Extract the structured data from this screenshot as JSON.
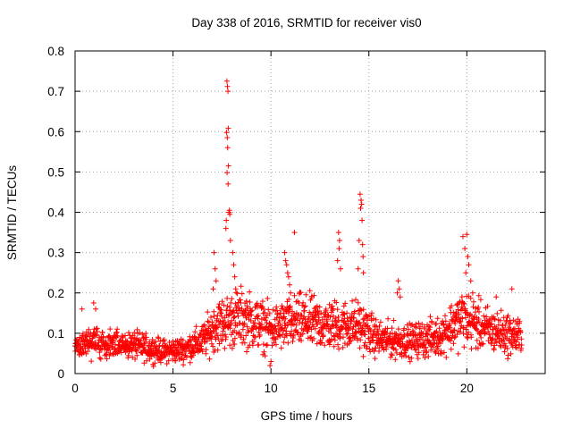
{
  "chart_data": {
    "type": "scatter",
    "title": "Day 338 of 2016, SRMTID for receiver vis0",
    "xlabel": "GPS time / hours",
    "ylabel": "SRMTID / TECUs",
    "xlim": [
      0,
      24
    ],
    "ylim": [
      0,
      0.8
    ],
    "x_ticks": [
      "0",
      "5",
      "10",
      "15",
      "20"
    ],
    "y_ticks": [
      "0",
      "0.1",
      "0.2",
      "0.3",
      "0.4",
      "0.5",
      "0.6",
      "0.7",
      "0.8"
    ],
    "grid": true,
    "marker": "+",
    "marker_color": "#ff0000",
    "baseline_segments": [
      {
        "t": 0.0,
        "v": 0.07
      },
      {
        "t": 0.8,
        "v": 0.08
      },
      {
        "t": 1.5,
        "v": 0.07
      },
      {
        "t": 3.0,
        "v": 0.07
      },
      {
        "t": 4.5,
        "v": 0.055
      },
      {
        "t": 5.5,
        "v": 0.06
      },
      {
        "t": 6.5,
        "v": 0.08
      },
      {
        "t": 7.2,
        "v": 0.12
      },
      {
        "t": 8.5,
        "v": 0.14
      },
      {
        "t": 10.0,
        "v": 0.11
      },
      {
        "t": 11.5,
        "v": 0.13
      },
      {
        "t": 13.0,
        "v": 0.12
      },
      {
        "t": 14.5,
        "v": 0.12
      },
      {
        "t": 15.5,
        "v": 0.085
      },
      {
        "t": 17.0,
        "v": 0.08
      },
      {
        "t": 18.5,
        "v": 0.09
      },
      {
        "t": 19.8,
        "v": 0.14
      },
      {
        "t": 21.0,
        "v": 0.11
      },
      {
        "t": 22.8,
        "v": 0.09
      }
    ],
    "series": [
      {
        "name": "vis0",
        "x": [
          7.75,
          7.78,
          7.8,
          7.82,
          7.74,
          7.77,
          7.79,
          7.83,
          7.76,
          7.81,
          7.85,
          7.72,
          7.88,
          7.9,
          7.7,
          7.93,
          8.05,
          8.1,
          8.15,
          8.2,
          7.1,
          7.15,
          7.2,
          7.05,
          14.55,
          14.6,
          14.63,
          14.58,
          14.65,
          14.5,
          14.68,
          14.7,
          14.45,
          14.72,
          13.45,
          13.5,
          13.48,
          13.55,
          13.4,
          10.7,
          10.75,
          10.8,
          10.85,
          10.9,
          10.95,
          11.0,
          11.2,
          19.8,
          19.9,
          20.0,
          20.05,
          20.1,
          20.2,
          19.95,
          20.3,
          16.5,
          16.55,
          16.6,
          16.45,
          0.95,
          1.05,
          0.35,
          9.95,
          10.0,
          22.3,
          21.5
        ],
        "y": [
          0.725,
          0.712,
          0.7,
          0.608,
          0.598,
          0.585,
          0.56,
          0.515,
          0.498,
          0.47,
          0.4,
          0.38,
          0.405,
          0.395,
          0.36,
          0.33,
          0.3,
          0.27,
          0.24,
          0.21,
          0.3,
          0.26,
          0.23,
          0.21,
          0.445,
          0.43,
          0.42,
          0.41,
          0.38,
          0.33,
          0.32,
          0.29,
          0.26,
          0.25,
          0.35,
          0.33,
          0.31,
          0.26,
          0.28,
          0.3,
          0.28,
          0.27,
          0.25,
          0.24,
          0.22,
          0.2,
          0.35,
          0.34,
          0.31,
          0.345,
          0.29,
          0.27,
          0.23,
          0.25,
          0.2,
          0.23,
          0.21,
          0.19,
          0.2,
          0.175,
          0.16,
          0.16,
          0.02,
          0.03,
          0.21,
          0.19
        ]
      }
    ]
  }
}
